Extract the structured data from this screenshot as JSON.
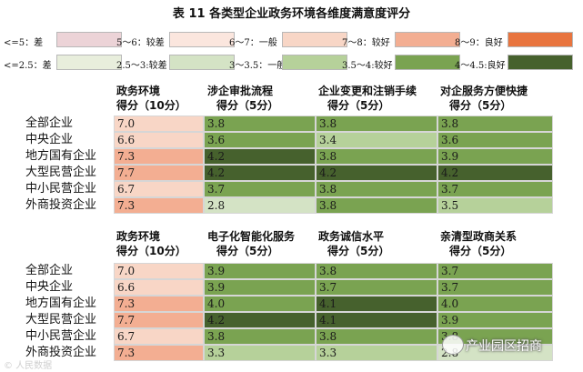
{
  "title": "表 11  各类型企业政务环境各维度满意度评分",
  "legend": {
    "row1": [
      {
        "label": "<=5：差",
        "color": "#ecd3d7"
      },
      {
        "label": "5～6：较差",
        "color": "#fbe6de"
      },
      {
        "label": "6～7：一般",
        "color": "#f8d6c6"
      },
      {
        "label": "7～8：较好",
        "color": "#f3ae92"
      },
      {
        "label": "8～9：良好",
        "color": "#e8743e"
      }
    ],
    "row2": [
      {
        "label": "<=2.5：差",
        "color": "#e8eedc"
      },
      {
        "label": "2.5～3:较差",
        "color": "#d4e3c5"
      },
      {
        "label": "3～3.5：一般",
        "color": "#b6d19a"
      },
      {
        "label": "3.5～4:较好",
        "color": "#7aa351"
      },
      {
        "label": "4～4.5:良好",
        "color": "#46612d"
      }
    ]
  },
  "chart_data": [
    {
      "type": "table",
      "headers": [
        [
          "政务环境",
          "得分（10分）"
        ],
        [
          "涉企审批流程",
          "得分（5分）"
        ],
        [
          "企业变更和注销手续",
          "得分（5分）"
        ],
        [
          "对企服务方便快捷",
          "得分（5分）"
        ]
      ],
      "rows": [
        {
          "label": "全部企业",
          "values": [
            "7.0",
            "3.8",
            "3.8",
            "3.8"
          ]
        },
        {
          "label": "中央企业",
          "values": [
            "6.6",
            "3.6",
            "3.4",
            "3.6"
          ]
        },
        {
          "label": "地方国有企业",
          "values": [
            "7.3",
            "4.2",
            "3.8",
            "3.9"
          ]
        },
        {
          "label": "大型民营企业",
          "values": [
            "7.7",
            "4.2",
            "4.2",
            "4.2"
          ]
        },
        {
          "label": "中小民营企业",
          "values": [
            "6.7",
            "3.7",
            "3.8",
            "3.7"
          ]
        },
        {
          "label": "外商投资企业",
          "values": [
            "7.3",
            "2.8",
            "3.8",
            "3.5"
          ]
        }
      ]
    },
    {
      "type": "table",
      "headers": [
        [
          "政务环境",
          "得分（10分）"
        ],
        [
          "电子化智能化服务",
          "得分（5分）"
        ],
        [
          "政务诚信水平",
          "得分（5分）"
        ],
        [
          "亲清型政商关系",
          "得分（5分）"
        ]
      ],
      "rows": [
        {
          "label": "全部企业",
          "values": [
            "7.0",
            "3.9",
            "3.8",
            "3.7"
          ]
        },
        {
          "label": "中央企业",
          "values": [
            "6.6",
            "3.9",
            "3.7",
            "3.7"
          ]
        },
        {
          "label": "地方国有企业",
          "values": [
            "7.3",
            "4.0",
            "4.1",
            "4.0"
          ]
        },
        {
          "label": "大型民营企业",
          "values": [
            "7.7",
            "4.2",
            "4.1",
            "3.9"
          ]
        },
        {
          "label": "中小民营企业",
          "values": [
            "6.7",
            "3.8",
            "3.8",
            "3.8"
          ]
        },
        {
          "label": "外商投资企业",
          "values": [
            "7.3",
            "3.3",
            "3.3",
            "2.8"
          ]
        }
      ]
    }
  ],
  "watermark": {
    "text": "产业园区招商",
    "small_text": "© 人民数据"
  }
}
